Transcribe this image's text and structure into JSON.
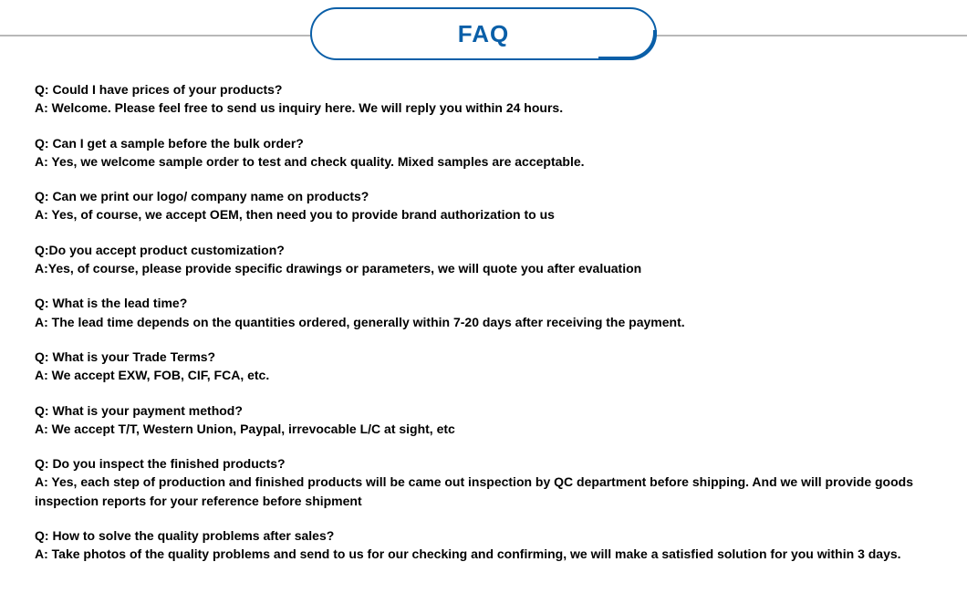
{
  "header": {
    "title": "FAQ",
    "title_color": "#0a5fa8",
    "border_color": "#0a5fa8",
    "line_color": "#b8b8b8",
    "background_color": "#ffffff"
  },
  "text_style": {
    "font_family": "Arial Narrow",
    "font_weight": "bold",
    "font_size": 14,
    "color": "#000000"
  },
  "faq_items": [
    {
      "question": "Q: Could I have prices of your products?",
      "answer": "A: Welcome. Please feel free to send us inquiry here. We will reply you within 24 hours."
    },
    {
      "question": "Q: Can I get a sample before the bulk order?",
      "answer": "A: Yes, we welcome sample order to test and check quality. Mixed samples are acceptable."
    },
    {
      "question": "Q: Can we print our logo/ company name on products?",
      "answer": "A: Yes, of course, we accept OEM, then need you to provide brand authorization to us"
    },
    {
      "question": "Q:Do you accept product customization?",
      "answer": "A:Yes, of course, please provide specific drawings or parameters, we will quote you after evaluation"
    },
    {
      "question": "Q: What is the lead time?",
      "answer": "A: The lead time depends on the quantities ordered, generally within 7-20 days after receiving the payment."
    },
    {
      "question": "Q: What is your Trade Terms?",
      "answer": "A: We accept EXW, FOB, CIF, FCA, etc."
    },
    {
      "question": "Q: What is your payment method?",
      "answer": "A: We accept T/T, Western Union, Paypal, irrevocable L/C at sight, etc"
    },
    {
      "question": "Q: Do you inspect the finished products?",
      "answer": "A: Yes, each step of production and finished products will be came out inspection by QC department before shipping. And we will provide goods inspection reports for your reference before shipment"
    },
    {
      "question": "Q: How to solve the quality problems after sales?",
      "answer": "A: Take photos of the quality problems and send to us for our checking and confirming, we will make a satisfied solution for you within 3 days."
    }
  ]
}
